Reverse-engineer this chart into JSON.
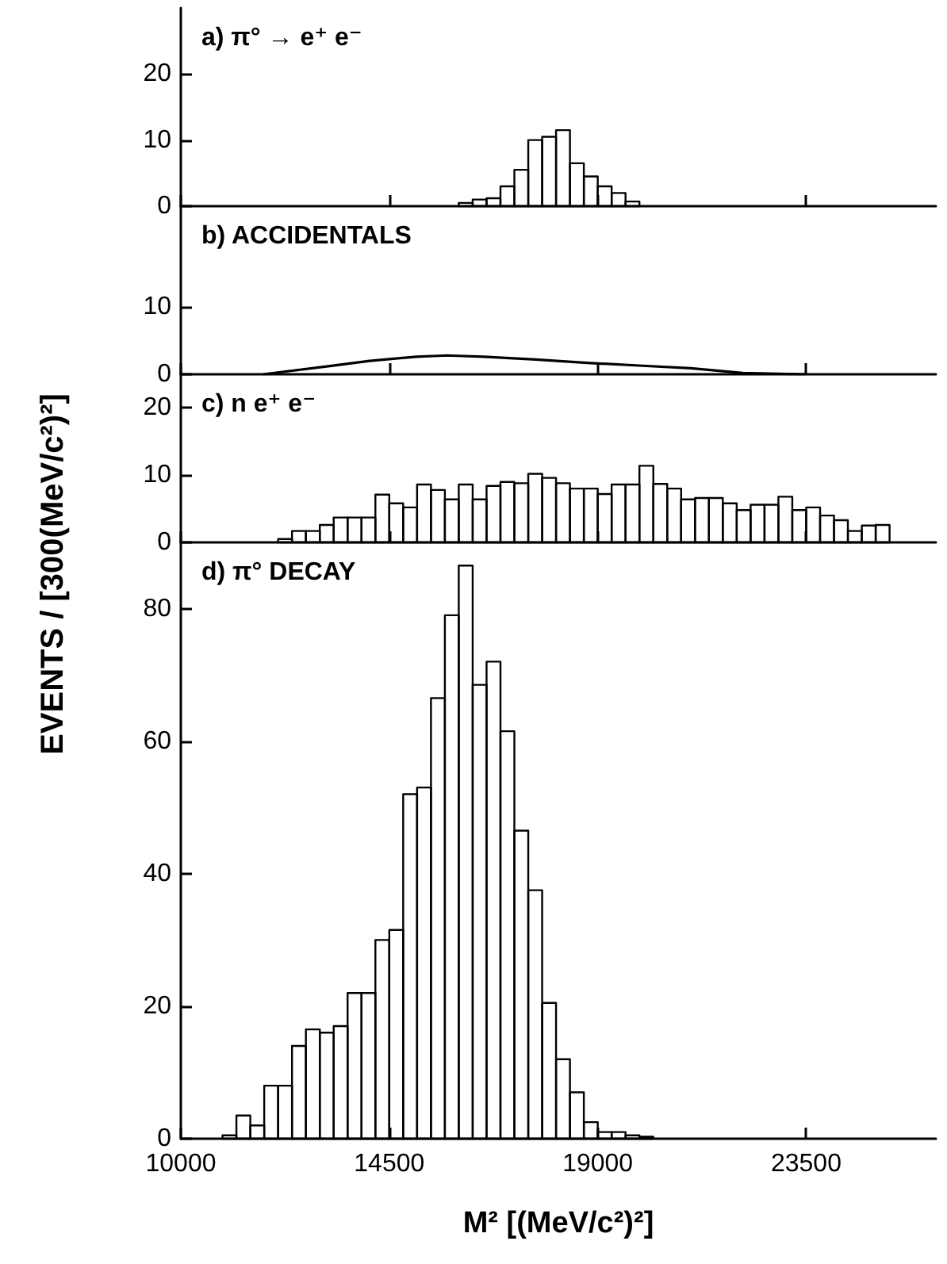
{
  "chart_data": [
    {
      "type": "histogram",
      "title": "a) π° → e⁺ e⁻",
      "color": "#000000",
      "bins": [
        16000,
        16300,
        16600,
        16900,
        17200,
        17500,
        17800,
        18100,
        18400,
        18700,
        19000,
        19300,
        19600,
        19900
      ],
      "values": [
        0.5,
        1,
        1.2,
        3,
        5.5,
        10,
        10.5,
        11.5,
        6.5,
        4.5,
        3,
        2,
        0.7
      ],
      "xlim": [
        10000,
        26300
      ],
      "xticks": [
        10000,
        14500,
        19000,
        23500
      ],
      "ylim": [
        0,
        30
      ],
      "yticks": [
        0,
        10,
        20
      ],
      "tick_labels": "y"
    },
    {
      "type": "line",
      "title": "b) ACCIDENTALS",
      "color": "#000000",
      "x": [
        11780,
        13180,
        14075,
        15080,
        15750,
        16540,
        17660,
        18775,
        19890,
        21010,
        22130,
        23475
      ],
      "values": [
        0,
        1.2,
        2,
        2.6,
        2.8,
        2.6,
        2.2,
        1.7,
        1.3,
        0.9,
        0.2,
        0
      ],
      "xlim": [
        10000,
        26300
      ],
      "xticks": [
        10000,
        14500,
        19000,
        23500
      ],
      "ylim": [
        0,
        25
      ],
      "yticks": [
        0,
        10
      ],
      "tick_labels": "y"
    },
    {
      "type": "histogram",
      "title": "c) n e⁺ e⁻",
      "color": "#000000",
      "bins": [
        12100,
        12400,
        12700,
        13000,
        13300,
        13600,
        13900,
        14200,
        14500,
        14800,
        15100,
        15400,
        15700,
        16000,
        16300,
        16600,
        16900,
        17200,
        17500,
        17800,
        18100,
        18400,
        18700,
        19000,
        19300,
        19600,
        19900,
        20200,
        20500,
        20800,
        21100,
        21400,
        21700,
        22000,
        22300,
        22600,
        22900,
        23200,
        23500,
        23800,
        24100,
        24400,
        24700,
        25000,
        25300
      ],
      "values": [
        0.5,
        1.7,
        1.7,
        2.6,
        3.7,
        3.7,
        3.7,
        7.1,
        5.8,
        5.2,
        8.6,
        7.8,
        6.4,
        8.6,
        6.4,
        8.4,
        9,
        8.8,
        10.2,
        9.6,
        8.8,
        8,
        8,
        7.2,
        8.6,
        8.6,
        11.4,
        8.7,
        8,
        6.4,
        6.6,
        6.6,
        5.8,
        4.8,
        5.6,
        5.6,
        6.8,
        4.8,
        5.2,
        4,
        3.3,
        1.7,
        2.5,
        2.6
      ],
      "xlim": [
        10000,
        26300
      ],
      "xticks": [
        10000,
        14500,
        19000,
        23500
      ],
      "ylim": [
        0,
        25
      ],
      "yticks": [
        0,
        10,
        20
      ],
      "tick_labels": "y"
    },
    {
      "type": "histogram",
      "title": "d) π° DECAY",
      "xlabel": "M² [(MeV/c²)²]",
      "ylabel": "EVENTS / [300(MeV/c²)²]",
      "color": "#000000",
      "bins": [
        10900,
        11200,
        11500,
        11800,
        12100,
        12400,
        12700,
        13000,
        13300,
        13600,
        13900,
        14200,
        14500,
        14800,
        15100,
        15400,
        15700,
        16000,
        16300,
        16600,
        16900,
        17200,
        17500,
        17800,
        18100,
        18400,
        18700,
        19000,
        19300,
        19600,
        19900,
        20200
      ],
      "values": [
        0.5,
        3.5,
        2,
        8,
        8,
        14,
        16.5,
        16,
        17,
        22,
        22,
        30,
        31.5,
        52,
        53,
        66.5,
        79,
        86.5,
        68.5,
        72,
        61.5,
        46.5,
        37.5,
        20.5,
        12,
        7,
        2.5,
        1,
        1,
        0.5,
        0.3
      ],
      "xlim": [
        10000,
        26300
      ],
      "xticks": [
        10000,
        14500,
        19000,
        23500
      ],
      "ylim": [
        0,
        90
      ],
      "yticks": [
        0,
        20,
        40,
        60,
        80
      ]
    }
  ]
}
